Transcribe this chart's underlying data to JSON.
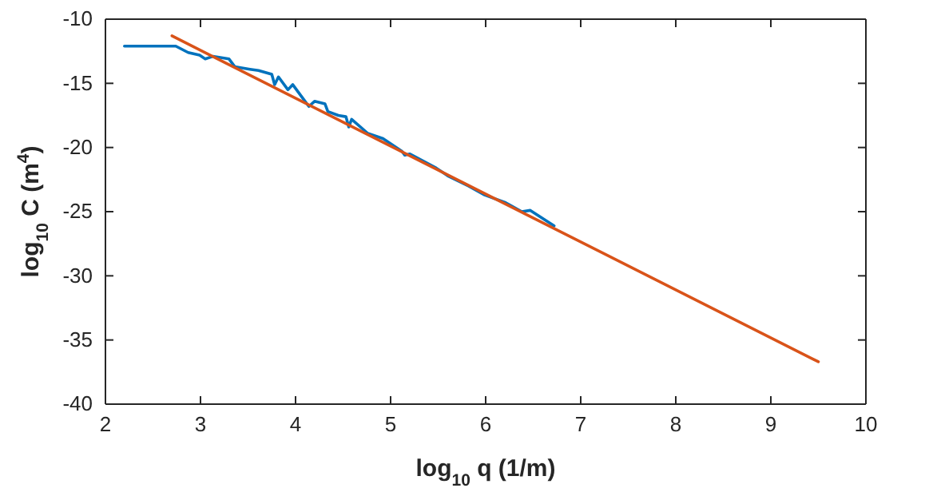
{
  "chart_data": {
    "type": "line",
    "xlabel": "log$_{10}$ q (1/m)",
    "ylabel": "log$_{10}$ C (m$^{4}$)",
    "xlim": [
      2,
      10
    ],
    "ylim": [
      -40,
      -10
    ],
    "xticks": [
      2,
      3,
      4,
      5,
      6,
      7,
      8,
      9,
      10
    ],
    "yticks": [
      -40,
      -35,
      -30,
      -25,
      -20,
      -15,
      -10
    ],
    "grid": false,
    "series": [
      {
        "color": "#0072bd",
        "x": [
          2.2,
          2.29,
          2.74,
          2.87,
          2.99,
          3.05,
          3.13,
          3.3,
          3.36,
          3.52,
          3.61,
          3.75,
          3.78,
          3.82,
          3.92,
          3.97,
          4.06,
          4.14,
          4.2,
          4.31,
          4.34,
          4.45,
          4.53,
          4.56,
          4.59,
          4.76,
          4.92,
          5.12,
          5.15,
          5.2,
          5.48,
          5.6,
          5.82,
          5.99,
          6.21,
          6.38,
          6.47,
          6.72
        ],
        "values": [
          -12.1,
          -12.1,
          -12.1,
          -12.6,
          -12.8,
          -13.1,
          -12.9,
          -13.1,
          -13.7,
          -13.9,
          -14.0,
          -14.3,
          -15.1,
          -14.5,
          -15.5,
          -15.1,
          -16.0,
          -16.8,
          -16.4,
          -16.6,
          -17.2,
          -17.5,
          -17.6,
          -18.4,
          -17.8,
          -18.9,
          -19.3,
          -20.3,
          -20.6,
          -20.5,
          -21.6,
          -22.2,
          -23.0,
          -23.7,
          -24.3,
          -25.0,
          -24.9,
          -26.1
        ]
      },
      {
        "color": "#d95319",
        "x": [
          2.7,
          9.5
        ],
        "values": [
          -11.3,
          -36.7
        ]
      }
    ]
  }
}
